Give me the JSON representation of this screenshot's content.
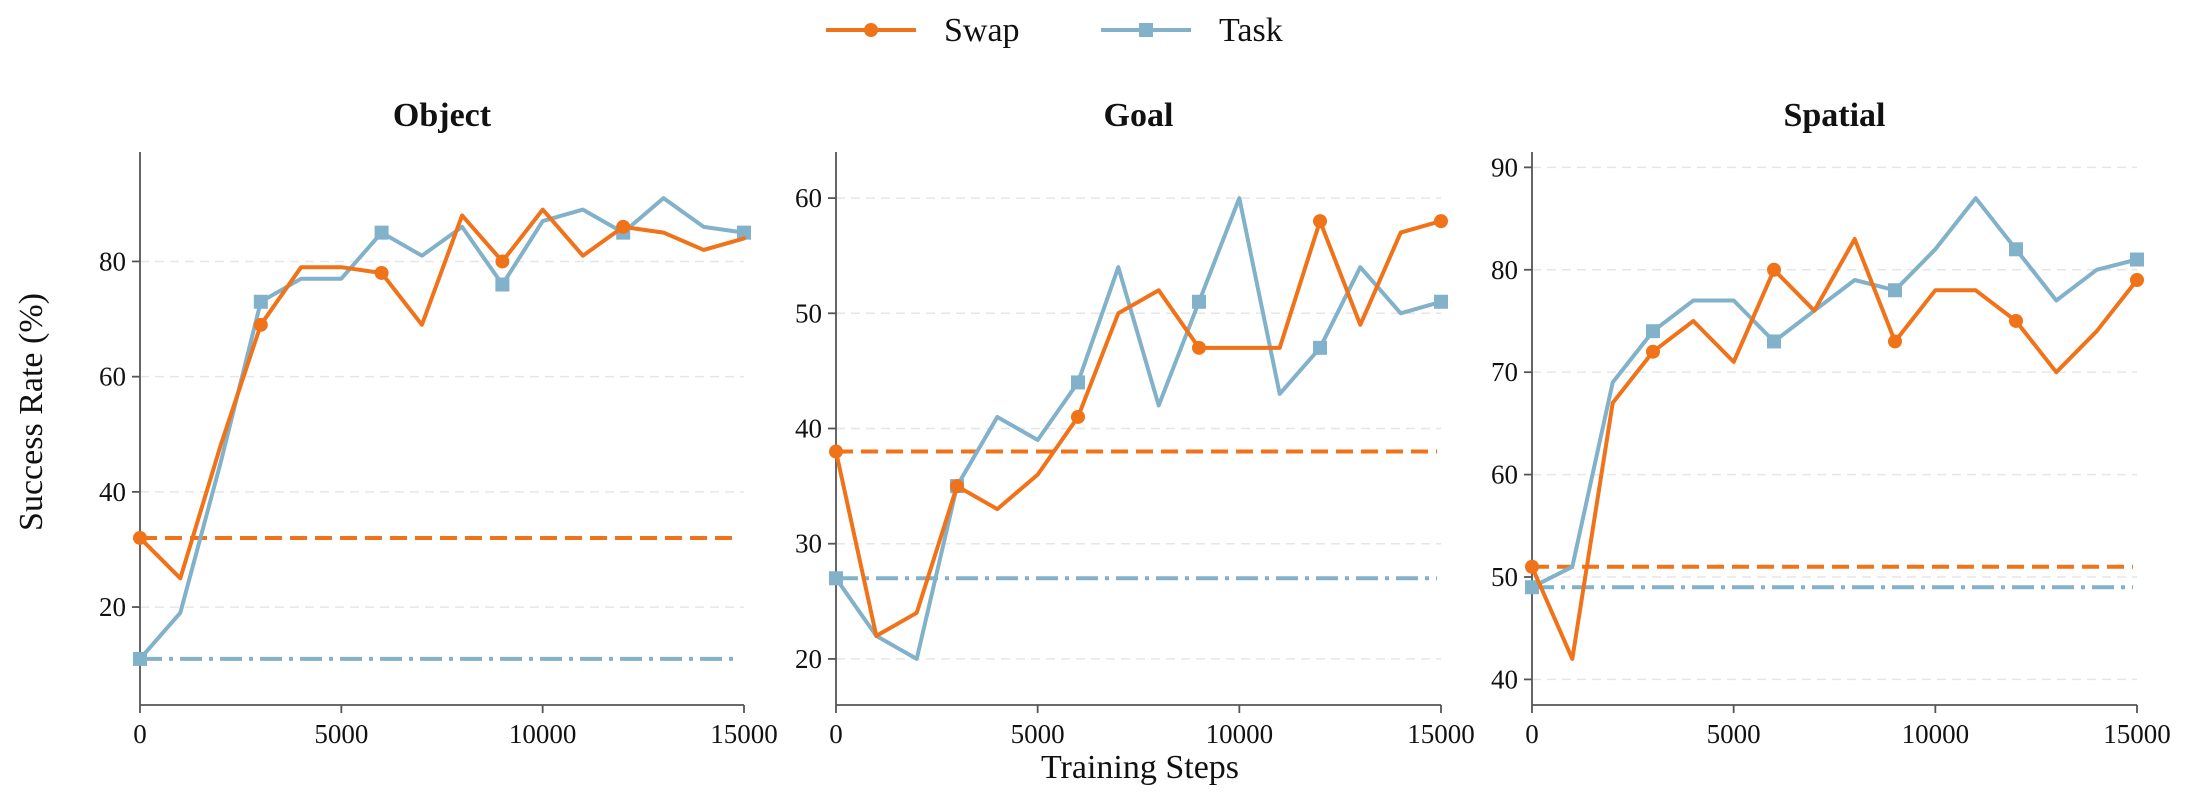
{
  "chart_data": {
    "type": "line",
    "ylabel": "Success Rate (%)",
    "xlabel": "Training Steps",
    "legend": {
      "placement": "top-center",
      "entries": [
        {
          "name": "Swap",
          "color": "#f07219",
          "marker": "circle"
        },
        {
          "name": "Task",
          "color": "#82b1ca",
          "marker": "square"
        }
      ]
    },
    "grid": {
      "x": false,
      "y": true,
      "style": "dashed"
    },
    "x_ticks": [
      0,
      5000,
      10000,
      15000
    ],
    "panels": [
      {
        "title": "Object",
        "xlim": [
          0,
          15000
        ],
        "ylim": [
          3,
          99
        ],
        "y_ticks": [
          20,
          40,
          60,
          80
        ],
        "series": [
          {
            "name": "Swap",
            "x": [
              0,
              1000,
              2000,
              3000,
              4000,
              5000,
              6000,
              7000,
              8000,
              9000,
              10000,
              11000,
              12000,
              13000,
              14000,
              15000
            ],
            "y": [
              32,
              25,
              48,
              69,
              79,
              79,
              78,
              69,
              88,
              80,
              89,
              81,
              86,
              85,
              82,
              84
            ],
            "marker_x": [
              0,
              3000,
              6000,
              9000,
              12000
            ]
          },
          {
            "name": "Task",
            "x": [
              0,
              1000,
              2000,
              3000,
              4000,
              5000,
              6000,
              7000,
              8000,
              9000,
              10000,
              11000,
              12000,
              13000,
              14000,
              15000
            ],
            "y": [
              11,
              19,
              45,
              73,
              77,
              77,
              85,
              81,
              86,
              76,
              87,
              89,
              85,
              91,
              86,
              85
            ],
            "marker_x": [
              0,
              3000,
              6000,
              9000,
              12000,
              15000
            ]
          }
        ],
        "baselines": [
          {
            "name": "Swap",
            "y": 32,
            "style": "dashed"
          },
          {
            "name": "Task",
            "y": 11,
            "style": "dashdot"
          }
        ]
      },
      {
        "title": "Goal",
        "xlim": [
          0,
          15000
        ],
        "ylim": [
          16,
          64
        ],
        "y_ticks": [
          20,
          30,
          40,
          50,
          60
        ],
        "series": [
          {
            "name": "Swap",
            "x": [
              0,
              1000,
              2000,
              3000,
              4000,
              5000,
              6000,
              7000,
              8000,
              9000,
              10000,
              11000,
              12000,
              13000,
              14000,
              15000
            ],
            "y": [
              38,
              22,
              24,
              35,
              33,
              36,
              41,
              50,
              52,
              47,
              47,
              47,
              58,
              49,
              57,
              58
            ],
            "marker_x": [
              0,
              3000,
              6000,
              9000,
              12000,
              15000
            ]
          },
          {
            "name": "Task",
            "x": [
              0,
              1000,
              2000,
              3000,
              4000,
              5000,
              6000,
              7000,
              8000,
              9000,
              10000,
              11000,
              12000,
              13000,
              14000,
              15000
            ],
            "y": [
              27,
              22,
              20,
              35,
              41,
              39,
              44,
              54,
              42,
              51,
              60,
              43,
              47,
              54,
              50,
              51
            ],
            "marker_x": [
              0,
              3000,
              6000,
              9000,
              12000,
              15000
            ]
          }
        ],
        "baselines": [
          {
            "name": "Swap",
            "y": 38,
            "style": "dashed"
          },
          {
            "name": "Task",
            "y": 27,
            "style": "dashdot"
          }
        ]
      },
      {
        "title": "Spatial",
        "xlim": [
          0,
          15000
        ],
        "ylim": [
          37.5,
          91.5
        ],
        "y_ticks": [
          40,
          50,
          60,
          70,
          80,
          90
        ],
        "series": [
          {
            "name": "Swap",
            "x": [
              0,
              1000,
              2000,
              3000,
              4000,
              5000,
              6000,
              7000,
              8000,
              9000,
              10000,
              11000,
              12000,
              13000,
              14000,
              15000
            ],
            "y": [
              51,
              42,
              67,
              72,
              75,
              71,
              80,
              76,
              83,
              73,
              78,
              78,
              75,
              70,
              74,
              79
            ],
            "marker_x": [
              0,
              3000,
              6000,
              9000,
              12000,
              15000
            ]
          },
          {
            "name": "Task",
            "x": [
              0,
              1000,
              2000,
              3000,
              4000,
              5000,
              6000,
              7000,
              8000,
              9000,
              10000,
              11000,
              12000,
              13000,
              14000,
              15000
            ],
            "y": [
              49,
              51,
              69,
              74,
              77,
              77,
              73,
              76,
              79,
              78,
              82,
              87,
              82,
              77,
              80,
              81
            ],
            "marker_x": [
              0,
              3000,
              6000,
              9000,
              12000,
              15000
            ]
          }
        ],
        "baselines": [
          {
            "name": "Swap",
            "y": 51,
            "style": "dashed"
          },
          {
            "name": "Task",
            "y": 49,
            "style": "dashdot"
          }
        ]
      }
    ]
  }
}
